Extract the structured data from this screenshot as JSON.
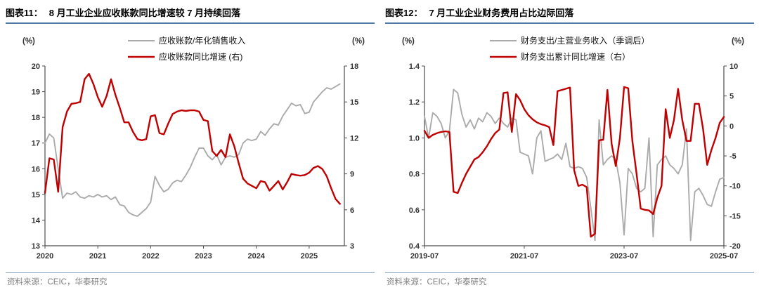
{
  "colors": {
    "red": "#c00000",
    "gray": "#ababab",
    "axis": "#4d4d4d",
    "title_rule": "#4e7ba6",
    "footer_rule": "#7f9db9",
    "source_text": "#7f7f7f"
  },
  "figures": [
    {
      "label": "图表11：",
      "title": "8 月工业企业应收账款同比增速较 7 月持续回落",
      "source": "资料来源：CEIC，华泰研究"
    },
    {
      "label": "图表12：",
      "title": "7 月工业企业财务费用占比边际回落",
      "source": "资料来源：CEIC，华泰研究"
    }
  ],
  "chart_data": [
    {
      "type": "line",
      "title": "8 月工业企业应收账款同比增速较 7 月持续回落",
      "x_start": "2020-01",
      "x_end": "2025-08",
      "x_total": 68,
      "grid": false,
      "legend_position": "top",
      "x_ticks": [
        [
          "2020",
          0
        ],
        [
          "2021",
          12
        ],
        [
          "2022",
          24
        ],
        [
          "2023",
          36
        ],
        [
          "2024",
          48
        ],
        [
          "2025",
          60
        ]
      ],
      "left_axis": {
        "label": "(%)",
        "min": 13,
        "max": 20,
        "ticks": [
          [
            "20",
            20
          ],
          [
            "19",
            19
          ],
          [
            "18",
            18
          ],
          [
            "17",
            17
          ],
          [
            "16",
            16
          ],
          [
            "15",
            15
          ],
          [
            "14",
            14
          ],
          [
            "13",
            13
          ]
        ]
      },
      "right_axis": {
        "label": "(%)",
        "min": 3,
        "max": 18,
        "ticks": [
          [
            "18",
            18
          ],
          [
            "15",
            15
          ],
          [
            "12",
            12
          ],
          [
            "9",
            9
          ],
          [
            "6",
            6
          ],
          [
            "3",
            3
          ]
        ]
      },
      "series": [
        {
          "key": "receivables_to_sales",
          "name": "应收账款/年化销售收入",
          "axis": "left",
          "color": "gray",
          "values": [
            17.0,
            17.35,
            17.2,
            16.0,
            14.85,
            15.05,
            15.0,
            15.1,
            14.9,
            14.85,
            14.95,
            14.9,
            15.0,
            14.9,
            14.95,
            14.8,
            14.9,
            14.6,
            14.55,
            14.3,
            14.2,
            14.15,
            14.3,
            14.45,
            14.7,
            15.7,
            15.35,
            15.1,
            15.2,
            15.45,
            15.55,
            15.5,
            15.75,
            16.05,
            16.45,
            16.8,
            16.8,
            16.5,
            16.35,
            16.55,
            16.15,
            16.45,
            16.5,
            16.45,
            16.55,
            17.0,
            17.15,
            17.1,
            17.15,
            17.45,
            17.3,
            17.55,
            17.75,
            17.7,
            18.05,
            18.3,
            18.55,
            18.45,
            18.5,
            18.15,
            18.2,
            18.6,
            18.8,
            19.0,
            19.15,
            19.1,
            19.2,
            19.3
          ]
        },
        {
          "key": "receivables_yoy",
          "name": "应收账款同比增速 (右)",
          "axis": "right",
          "color": "red",
          "values": [
            7.4,
            10.3,
            10.2,
            7.5,
            12.9,
            14.2,
            14.85,
            14.9,
            15.0,
            16.9,
            17.35,
            16.5,
            15.4,
            14.6,
            15.5,
            16.9,
            15.6,
            14.5,
            13.3,
            13.3,
            12.5,
            11.9,
            11.8,
            11.9,
            13.8,
            13.9,
            12.4,
            12.3,
            13.2,
            14.0,
            14.2,
            14.3,
            14.25,
            14.3,
            14.3,
            14.2,
            13.5,
            13.4,
            10.9,
            10.5,
            11.0,
            10.4,
            12.3,
            11.3,
            9.9,
            8.6,
            8.2,
            8.0,
            7.8,
            8.4,
            8.3,
            7.6,
            8.0,
            8.4,
            7.7,
            8.3,
            9.0,
            8.9,
            8.85,
            8.9,
            9.1,
            9.5,
            9.65,
            9.4,
            8.8,
            7.8,
            6.9,
            6.5
          ]
        }
      ],
      "source": "资料来源：CEIC，华泰研究"
    },
    {
      "type": "line",
      "title": "7 月工业企业财务费用占比边际回落",
      "x_start": "2019-07",
      "x_end": "2025-07",
      "x_total": 72,
      "grid": false,
      "legend_position": "top",
      "x_ticks": [
        [
          "2019-07",
          0
        ],
        [
          "2021-07",
          24
        ],
        [
          "2023-07",
          48
        ],
        [
          "2025-07",
          72
        ]
      ],
      "left_axis": {
        "label": "(%)",
        "min": 0.4,
        "max": 1.4,
        "ticks": [
          [
            "1.4",
            1.4
          ],
          [
            "1.2",
            1.2
          ],
          [
            "1.0",
            1.0
          ],
          [
            "0.8",
            0.8
          ],
          [
            "0.6",
            0.6
          ],
          [
            "0.4",
            0.4
          ]
        ]
      },
      "right_axis": {
        "label": "(%)",
        "min": -20,
        "max": 10,
        "ticks": [
          [
            "10",
            10
          ],
          [
            "5",
            5
          ],
          [
            "0",
            0
          ],
          [
            "-5",
            -5
          ],
          [
            "-10",
            -10
          ],
          [
            "-15",
            -15
          ],
          [
            "-20",
            -20
          ]
        ]
      },
      "series": [
        {
          "key": "finance_expense_ratio",
          "name": "财务支出/主营业务收入（季调后）",
          "axis": "left",
          "color": "gray",
          "values": [
            1.12,
            1.0,
            1.14,
            1.12,
            1.08,
            1.0,
            1.04,
            1.27,
            1.25,
            1.13,
            1.06,
            1.1,
            1.05,
            1.11,
            1.09,
            1.14,
            1.12,
            1.08,
            1.11,
            1.08,
            1.06,
            1.11,
            1.1,
            0.92,
            0.91,
            0.9,
            0.8,
            1.0,
            1.04,
            0.87,
            0.88,
            0.89,
            0.91,
            0.88,
            0.97,
            0.84,
            0.83,
            0.84,
            0.83,
            0.78,
            0.61,
            0.43,
            1.1,
            0.85,
            0.88,
            0.9,
            0.88,
            0.75,
            0.46,
            0.83,
            0.8,
            0.72,
            0.7,
            0.72,
            1.0,
            0.45,
            0.85,
            0.88,
            0.9,
            0.85,
            0.83,
            0.8,
            0.85,
            1.05,
            0.43,
            0.7,
            0.72,
            0.68,
            0.63,
            0.62,
            0.7,
            0.77,
            0.78
          ]
        },
        {
          "key": "finance_expense_yoy",
          "name": "财务支出累计同比增速（右）",
          "axis": "right",
          "color": "red",
          "values": [
            -0.8,
            -2.0,
            -1.5,
            -1.2,
            -1.0,
            -0.9,
            -1.0,
            -11.0,
            -11.2,
            -9.5,
            -8.0,
            -6.8,
            -5.6,
            -5.2,
            -4.4,
            -3.4,
            -2.2,
            -1.2,
            -0.6,
            5.5,
            5.6,
            -1.0,
            5.3,
            4.3,
            2.8,
            1.8,
            1.1,
            0.6,
            0.3,
            0.1,
            -0.2,
            -3.2,
            5.8,
            6.0,
            6.2,
            6.4,
            -7.4,
            -10.0,
            -9.8,
            -10.2,
            -18.5,
            -18.0,
            -2.4,
            -2.3,
            6.0,
            -3.0,
            -6.7,
            -2.0,
            6.5,
            6.3,
            -2.5,
            -8.0,
            -13.8,
            -14.0,
            -14.1,
            -14.7,
            -12.0,
            -10.0,
            2.8,
            -2.0,
            1.0,
            6.2,
            1.0,
            -2.5,
            -2.5,
            3.7,
            3.7,
            -0.5,
            -6.5,
            -4.0,
            -2.0,
            0.5,
            1.5
          ]
        }
      ],
      "source": "资料来源：CEIC，华泰研究"
    }
  ]
}
